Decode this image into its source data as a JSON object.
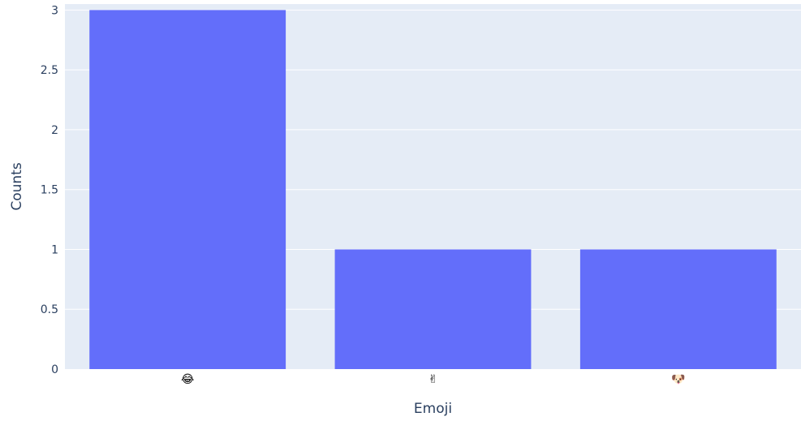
{
  "chart_data": {
    "type": "bar",
    "title": "",
    "xlabel": "Emoji",
    "ylabel": "Counts",
    "categories": [
      "😂",
      "✌",
      "🐶"
    ],
    "values": [
      3,
      1,
      1
    ],
    "ylim": [
      0,
      3.05
    ],
    "yticks": [
      0,
      0.5,
      1,
      1.5,
      2,
      2.5,
      3
    ],
    "ytick_labels": [
      "0",
      "0.5",
      "1",
      "1.5",
      "2",
      "2.5",
      "3"
    ],
    "grid": true,
    "legend": "none",
    "colors": {
      "bar": "#636efa",
      "plot_background": "#e5ecf6",
      "grid": "#ffffff",
      "text": "#2a3f5f"
    }
  }
}
